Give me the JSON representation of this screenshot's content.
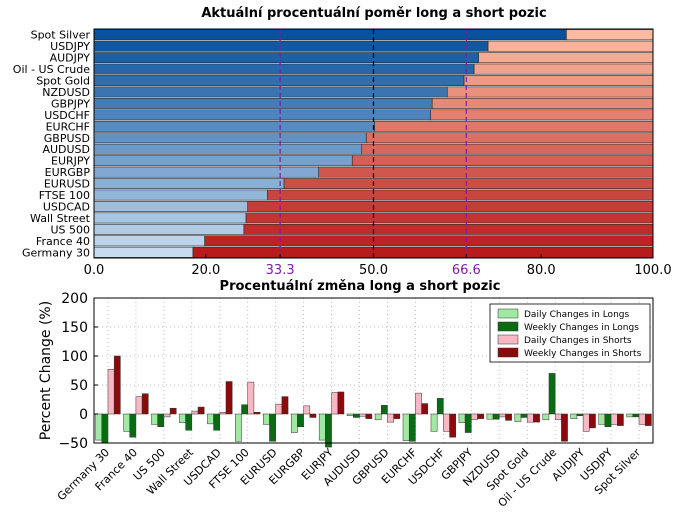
{
  "chart_data": [
    {
      "type": "bar",
      "orientation": "horizontal",
      "stacked": true,
      "title": "Aktuální procentuální poměr long a short pozic",
      "categories": [
        "Spot Silver",
        "USDJPY",
        "AUDJPY",
        "Oil - US Crude",
        "Spot Gold",
        "NZDUSD",
        "GBPJPY",
        "USDCHF",
        "EURCHF",
        "GBPUSD",
        "AUDUSD",
        "EURJPY",
        "EURGBP",
        "EURUSD",
        "FTSE 100",
        "USDCAD",
        "Wall Street",
        "US 500",
        "France 40",
        "Germany 30"
      ],
      "long_pct": [
        84.5,
        70.5,
        68.8,
        68.0,
        66.2,
        63.2,
        60.5,
        60.2,
        50.2,
        48.7,
        47.9,
        46.2,
        40.2,
        34.0,
        31.0,
        27.5,
        27.2,
        26.8,
        19.8,
        17.7
      ],
      "xlim": [
        0,
        100
      ],
      "xticks": [
        "0.0",
        "20.0",
        "33.3",
        "50.0",
        "66.6",
        "80.0",
        "100.0"
      ],
      "reference_lines": [
        33.3,
        50.0,
        66.6
      ],
      "colors": {
        "long_dark": "#08519c",
        "long_light": "#c6dbef",
        "short_light": "#fcbba1",
        "short_dark": "#b71c1c",
        "ref_line_purple": "#7b1fa2",
        "ref_line_center": "#000000",
        "ref_label_purple": "#7b1fa2"
      }
    },
    {
      "type": "bar",
      "orientation": "vertical",
      "grouped": true,
      "title": "Procentuální změna long a short pozic",
      "ylabel": "Percent Change (%)",
      "ylim": [
        -50,
        200
      ],
      "yticks": [
        "−50",
        "0",
        "50",
        "100",
        "150",
        "200"
      ],
      "grid": true,
      "legend_position": "top-right",
      "categories": [
        "Germany 30",
        "France 40",
        "US 500",
        "Wall Street",
        "USDCAD",
        "FTSE 100",
        "EURUSD",
        "EURGBP",
        "EURJPY",
        "AUDUSD",
        "GBPUSD",
        "EURCHF",
        "USDCHF",
        "GBPJPY",
        "NZDUSD",
        "Spot Gold",
        "Oil - US Crude",
        "AUDJPY",
        "USDJPY",
        "Spot Silver"
      ],
      "series": [
        {
          "name": "Daily Changes in Longs",
          "color": "#a1e8a1",
          "values": [
            -45,
            -30,
            -18,
            -15,
            -17,
            -47,
            -18,
            -32,
            -45,
            -3,
            -10,
            -46,
            -30,
            -15,
            -9,
            -13,
            -10,
            -8,
            -18,
            -5
          ]
        },
        {
          "name": "Weekly Changes in Longs",
          "color": "#0b6b12",
          "values": [
            -50,
            -40,
            -22,
            -28,
            -28,
            16,
            -47,
            -22,
            -57,
            -6,
            15,
            -47,
            27,
            -32,
            -9,
            -6,
            70,
            -3,
            -22,
            -5
          ]
        },
        {
          "name": "Daily Changes in Shorts",
          "color": "#f7b7c3",
          "values": [
            77,
            30,
            -5,
            5,
            3,
            55,
            17,
            14,
            37,
            -4,
            -14,
            36,
            -30,
            -10,
            -5,
            -14,
            -10,
            -30,
            -18,
            -18
          ]
        },
        {
          "name": "Weekly Changes in Shorts",
          "color": "#8b0a0a",
          "values": [
            100,
            35,
            10,
            12,
            56,
            3,
            30,
            -6,
            38,
            -8,
            -8,
            18,
            -40,
            -8,
            -11,
            -14,
            -47,
            -24,
            -20,
            -20
          ]
        }
      ]
    }
  ]
}
